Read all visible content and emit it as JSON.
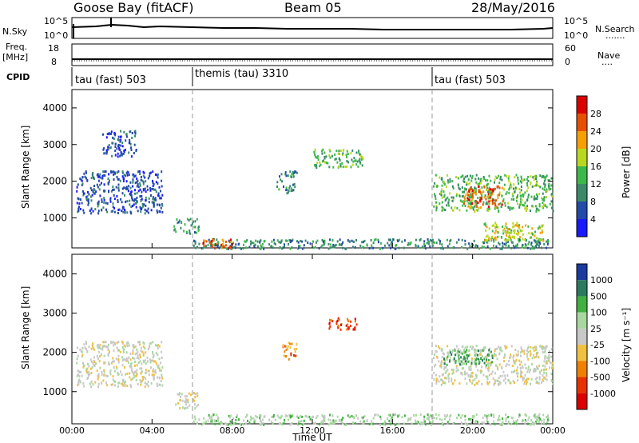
{
  "header": {
    "title": "Goose Bay (fitACF)",
    "beam": "Beam 05",
    "date": "28/May/2016"
  },
  "sky_panel": {
    "left_label": "N.Sky",
    "right_label": "N.Search",
    "left_top": "10^5",
    "left_bottom": "10^0",
    "right_top": "10^5",
    "right_bottom": "10^0",
    "right_marker": "......."
  },
  "freq_panel": {
    "left_label_1": "Freq.",
    "left_label_2": "[MHz]",
    "left_top": "18",
    "left_bottom": "8",
    "right_label": "Nave",
    "right_top": "60",
    "right_bottom": "0",
    "right_marker": "...."
  },
  "cpid": {
    "label": "CPID",
    "segments": [
      "tau (fast) 503",
      "themis (tau) 3310",
      "tau (fast) 503"
    ]
  },
  "x_axis": {
    "label": "Time UT",
    "ticks": [
      "00:00",
      "04:00",
      "08:00",
      "12:00",
      "16:00",
      "20:00",
      "00:00"
    ]
  },
  "power_panel": {
    "ylabel": "Slant Range [km]",
    "yticks": [
      "1000",
      "2000",
      "3000",
      "4000"
    ],
    "colorbar_label": "Power [dB]",
    "colorbar_ticks": [
      "4",
      "8",
      "12",
      "16",
      "20",
      "24",
      "28"
    ],
    "colors": [
      "#1a1aff",
      "#224aa8",
      "#3a8a6a",
      "#3cb84a",
      "#b8d820",
      "#f5a000",
      "#e85000",
      "#dd0000"
    ]
  },
  "velocity_panel": {
    "ylabel": "Slant Range [km]",
    "yticks": [
      "1000",
      "2000",
      "3000",
      "4000"
    ],
    "colorbar_label": "Velocity [m s⁻¹]",
    "colorbar_ticks": [
      "1000",
      "500",
      "100",
      "25",
      "-25",
      "-100",
      "-500",
      "-1000"
    ],
    "colors": [
      "#1a3aa0",
      "#2a7a60",
      "#40b040",
      "#a8d8a0",
      "#c8c8c8",
      "#f0c040",
      "#f08000",
      "#e83000",
      "#dd0000"
    ]
  },
  "chart_data": {
    "type": "heatmap",
    "x_unit": "hours UT",
    "xlim": [
      0,
      24
    ],
    "ylim_km": [
      180,
      4500
    ],
    "mode_changes_hours": [
      6,
      18
    ],
    "power_regions": [
      {
        "t0": 0.2,
        "t1": 4.5,
        "r0": 1150,
        "r1": 2300,
        "level": 1
      },
      {
        "t0": 1.5,
        "t1": 3.2,
        "r0": 2700,
        "r1": 3400,
        "level": 1
      },
      {
        "t0": 5.0,
        "t1": 6.3,
        "r0": 600,
        "r1": 1000,
        "level": 2
      },
      {
        "t0": 6.0,
        "t1": 23.8,
        "r0": 180,
        "r1": 450,
        "level": 2
      },
      {
        "t0": 6.5,
        "t1": 8.0,
        "r0": 200,
        "r1": 450,
        "level": 6
      },
      {
        "t0": 10.2,
        "t1": 11.2,
        "r0": 1700,
        "r1": 2300,
        "level": 2
      },
      {
        "t0": 12.0,
        "t1": 14.5,
        "r0": 2400,
        "r1": 2900,
        "level": 3
      },
      {
        "t0": 18.0,
        "t1": 24.0,
        "r0": 1200,
        "r1": 2200,
        "level": 3
      },
      {
        "t0": 19.5,
        "t1": 21.5,
        "r0": 1300,
        "r1": 1900,
        "level": 6
      },
      {
        "t0": 20.5,
        "t1": 23.5,
        "r0": 400,
        "r1": 900,
        "level": 4
      }
    ],
    "velocity_regions": [
      {
        "t0": 0.2,
        "t1": 4.5,
        "r0": 1150,
        "r1": 2300,
        "level": 4
      },
      {
        "t0": 5.0,
        "t1": 6.3,
        "r0": 600,
        "r1": 1000,
        "level": 4
      },
      {
        "t0": 6.0,
        "t1": 23.8,
        "r0": 180,
        "r1": 450,
        "level": 3
      },
      {
        "t0": 10.5,
        "t1": 11.2,
        "r0": 1800,
        "r1": 2300,
        "level": 6
      },
      {
        "t0": 12.8,
        "t1": 14.2,
        "r0": 2600,
        "r1": 2900,
        "level": 7
      },
      {
        "t0": 18.0,
        "t1": 24.0,
        "r0": 1200,
        "r1": 2200,
        "level": 4
      },
      {
        "t0": 18.5,
        "t1": 21.0,
        "r0": 1700,
        "r1": 2100,
        "level": 2
      }
    ]
  }
}
